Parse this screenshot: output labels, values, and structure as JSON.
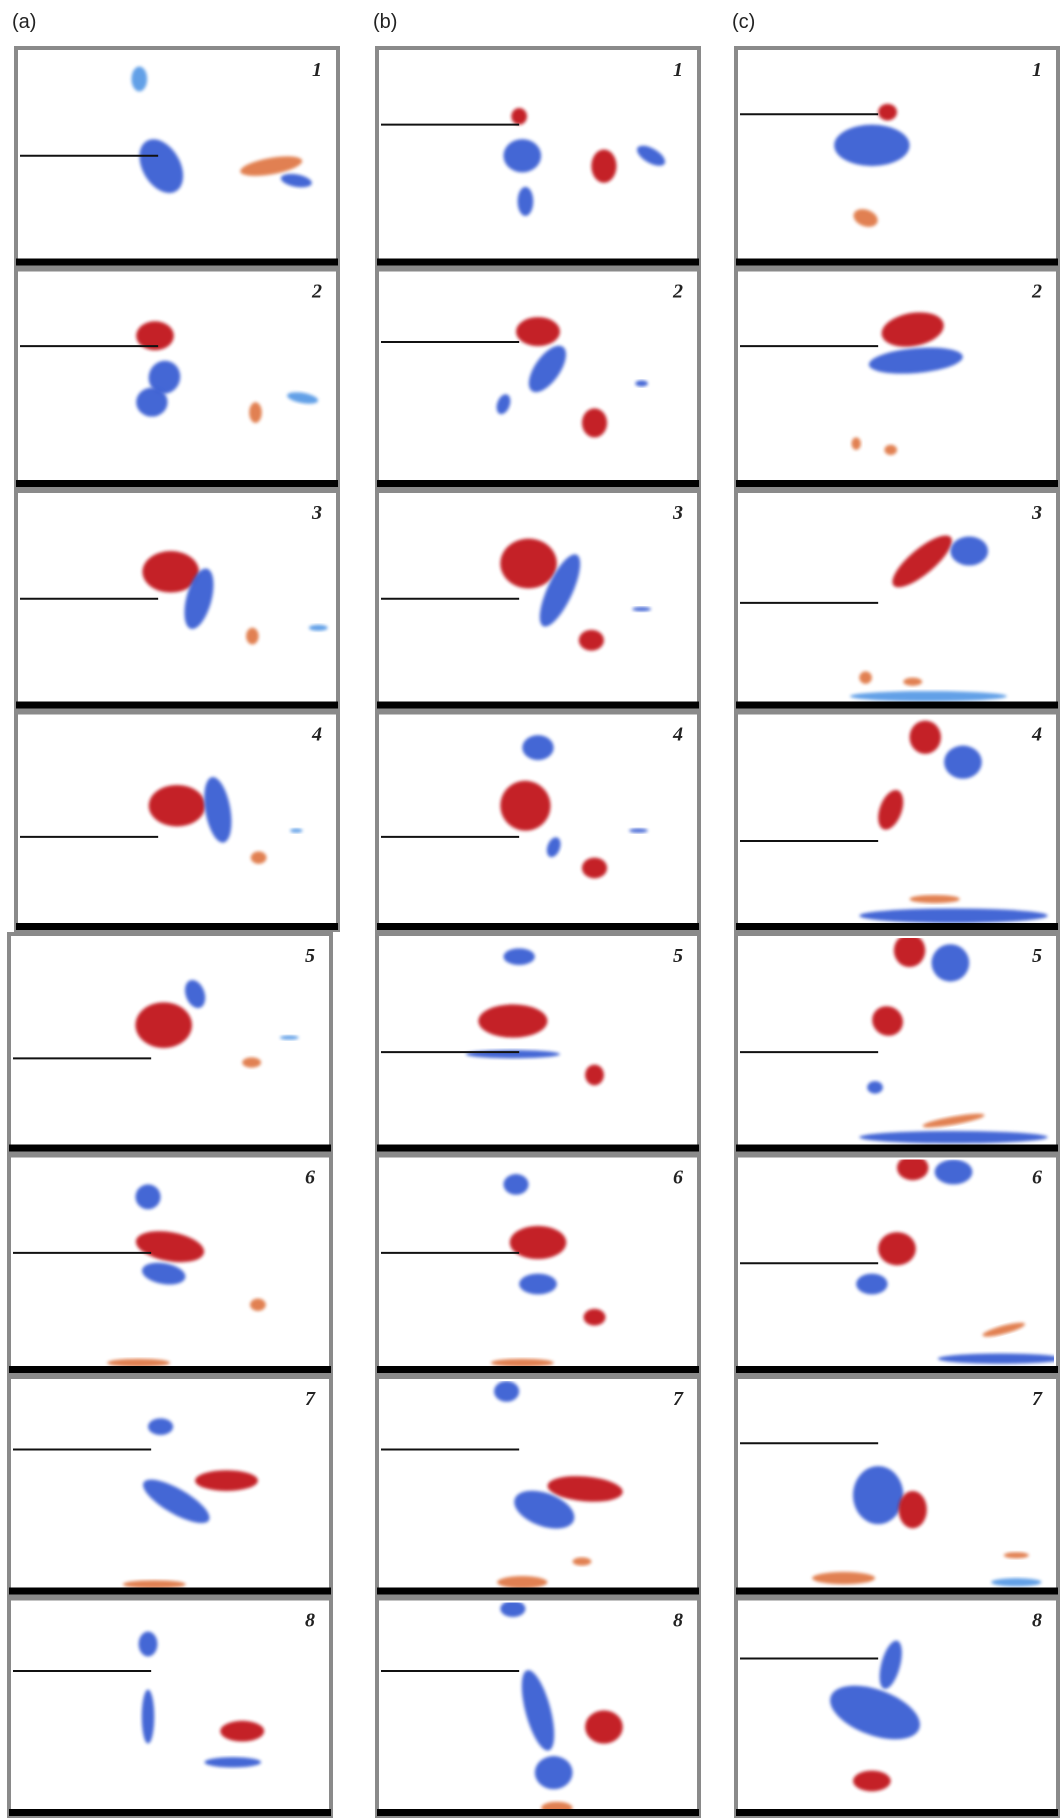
{
  "columns": [
    {
      "label": "(a)",
      "panels": [
        "1",
        "2",
        "3",
        "4",
        "5",
        "6",
        "7",
        "8"
      ]
    },
    {
      "label": "(b)",
      "panels": [
        "1",
        "2",
        "3",
        "4",
        "5",
        "6",
        "7",
        "8"
      ]
    },
    {
      "label": "(c)",
      "panels": [
        "1",
        "2",
        "3",
        "4",
        "5",
        "6",
        "7",
        "8"
      ]
    }
  ]
}
